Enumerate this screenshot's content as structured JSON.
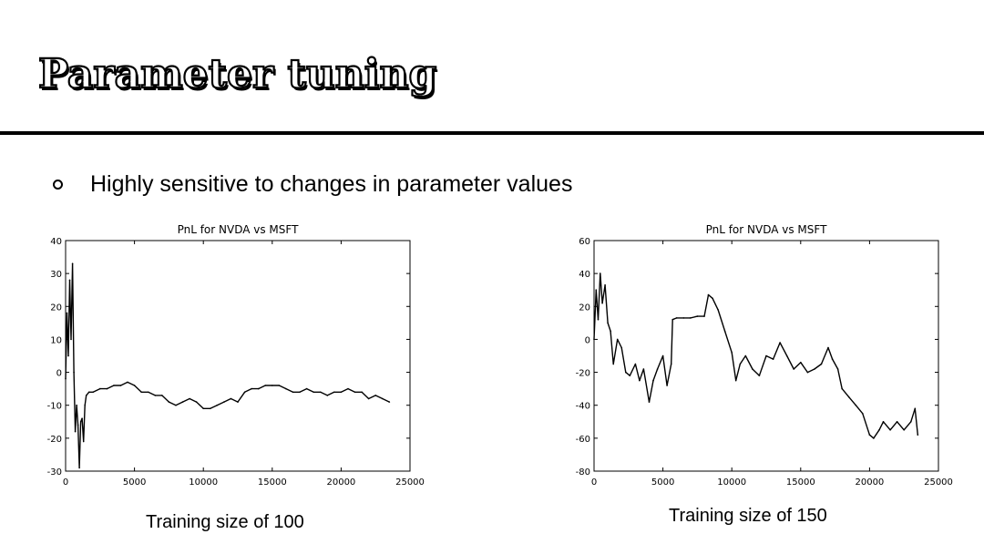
{
  "slide": {
    "title": "Parameter tuning",
    "bullet": "Highly sensitive to changes in parameter values",
    "captions": [
      "Training size of 100",
      "Training size of 150"
    ]
  },
  "chart_data": [
    {
      "type": "line",
      "title": "PnL for NVDA vs MSFT",
      "xlabel": "",
      "ylabel": "",
      "xlim": [
        0,
        25000
      ],
      "ylim": [
        -30,
        40
      ],
      "xticks": [
        "0",
        "5000",
        "10000",
        "15000",
        "20000",
        "25000"
      ],
      "yticks": [
        "40",
        "30",
        "20",
        "10",
        "0",
        "-10",
        "-20",
        "-30"
      ],
      "grid": false,
      "line_color": "#000000",
      "series": [
        {
          "x": [
            0,
            100,
            200,
            300,
            400,
            500,
            600,
            700,
            800,
            900,
            1000,
            1100,
            1200,
            1300,
            1400,
            1500,
            1700,
            2000,
            2500,
            3000,
            3500,
            4000,
            4500,
            5000,
            5500,
            6000,
            6500,
            7000,
            7500,
            8000,
            8500,
            9000,
            9500,
            10000,
            10500,
            11000,
            11500,
            12000,
            12500,
            13000,
            13500,
            14000,
            14500,
            15000,
            15500,
            16000,
            16500,
            17000,
            17500,
            18000,
            18500,
            19000,
            19500,
            20000,
            20500,
            21000,
            21500,
            22000,
            22500,
            23000,
            23500
          ],
          "y": [
            -2,
            18,
            5,
            28,
            10,
            33,
            0,
            -18,
            -10,
            -16,
            -29,
            -15,
            -14,
            -21,
            -10,
            -7,
            -6,
            -6,
            -5,
            -5,
            -4,
            -4,
            -3,
            -4,
            -6,
            -6,
            -7,
            -7,
            -9,
            -10,
            -9,
            -8,
            -9,
            -11,
            -11,
            -10,
            -9,
            -8,
            -9,
            -6,
            -5,
            -5,
            -4,
            -4,
            -4,
            -5,
            -6,
            -6,
            -5,
            -6,
            -6,
            -7,
            -6,
            -6,
            -5,
            -6,
            -6,
            -8,
            -7,
            -8,
            -9
          ]
        }
      ]
    },
    {
      "type": "line",
      "title": "PnL for NVDA vs MSFT",
      "xlabel": "",
      "ylabel": "",
      "xlim": [
        0,
        25000
      ],
      "ylim": [
        -80,
        60
      ],
      "xticks": [
        "0",
        "5000",
        "10000",
        "15000",
        "20000",
        "25000"
      ],
      "yticks": [
        "60",
        "40",
        "20",
        "0",
        "-20",
        "-40",
        "-60",
        "-80"
      ],
      "grid": false,
      "line_color": "#000000",
      "series": [
        {
          "x": [
            0,
            150,
            300,
            450,
            600,
            800,
            1000,
            1200,
            1400,
            1700,
            2000,
            2300,
            2600,
            3000,
            3300,
            3600,
            4000,
            4300,
            4600,
            5000,
            5300,
            5600,
            5700,
            6000,
            6500,
            7000,
            7500,
            8000,
            8300,
            8600,
            9000,
            9500,
            10000,
            10300,
            10600,
            11000,
            11500,
            12000,
            12500,
            13000,
            13500,
            14000,
            14500,
            15000,
            15500,
            16000,
            16500,
            17000,
            17300,
            17700,
            18000,
            18500,
            19000,
            19500,
            20000,
            20300,
            20700,
            21000,
            21500,
            22000,
            22500,
            23000,
            23300,
            23500
          ],
          "y": [
            0,
            30,
            12,
            40,
            22,
            33,
            10,
            5,
            -15,
            0,
            -5,
            -20,
            -22,
            -15,
            -25,
            -18,
            -38,
            -25,
            -18,
            -10,
            -28,
            -15,
            12,
            13,
            13,
            13,
            14,
            14,
            27,
            25,
            18,
            5,
            -8,
            -25,
            -15,
            -10,
            -18,
            -22,
            -10,
            -12,
            -2,
            -10,
            -18,
            -14,
            -20,
            -18,
            -15,
            -5,
            -12,
            -18,
            -30,
            -35,
            -40,
            -45,
            -58,
            -60,
            -55,
            -50,
            -55,
            -50,
            -55,
            -50,
            -42,
            -58
          ]
        }
      ]
    }
  ]
}
